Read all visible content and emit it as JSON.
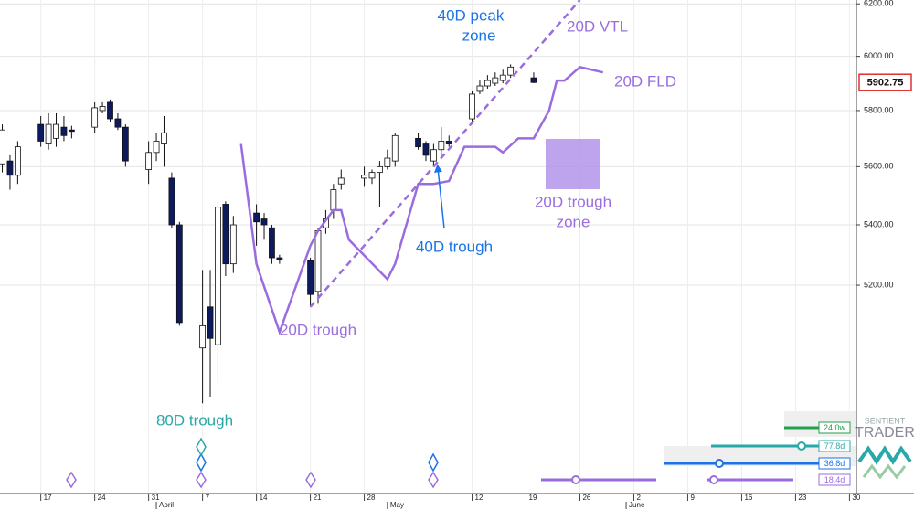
{
  "chart_data": {
    "type": "candlestick",
    "x": [
      -5,
      -4,
      -3,
      0,
      1,
      2,
      3,
      4,
      7,
      8,
      9,
      10,
      11,
      14,
      15,
      16,
      17,
      18,
      21,
      22,
      23,
      24,
      25,
      28,
      29,
      30,
      31,
      35,
      36,
      37,
      38,
      39,
      42,
      43,
      44,
      45,
      46,
      49,
      50,
      51,
      52,
      53,
      56,
      57,
      58,
      59,
      60,
      61,
      64
    ],
    "open": [
      5610,
      5620,
      5570,
      5750,
      5680,
      5700,
      5740,
      5730,
      5740,
      5800,
      5830,
      5770,
      5740,
      5590,
      5650,
      5680,
      5560,
      5400,
      5000,
      5130,
      5010,
      5470,
      5270,
      5440,
      5420,
      5390,
      5290,
      5280,
      5180,
      5390,
      5450,
      5540,
      5560,
      5560,
      5580,
      5600,
      5620,
      5700,
      5680,
      5620,
      5660,
      5690,
      5770,
      5870,
      5890,
      5900,
      5910,
      5930,
      5920
    ],
    "high": [
      5750,
      5640,
      5690,
      5780,
      5790,
      5790,
      5780,
      5745,
      5830,
      5830,
      5840,
      5790,
      5750,
      5690,
      5720,
      5780,
      5580,
      5410,
      5250,
      5250,
      5480,
      5480,
      5430,
      5470,
      5440,
      5400,
      5300,
      5290,
      5390,
      5450,
      5540,
      5590,
      5600,
      5590,
      5620,
      5660,
      5720,
      5720,
      5690,
      5680,
      5740,
      5710,
      5870,
      5910,
      5930,
      5940,
      5950,
      5970,
      5940
    ],
    "low": [
      5580,
      5520,
      5540,
      5670,
      5660,
      5670,
      5690,
      5700,
      5720,
      5790,
      5760,
      5730,
      5600,
      5540,
      5620,
      5600,
      5390,
      5070,
      4830,
      4850,
      4890,
      5230,
      5240,
      5330,
      5350,
      5270,
      5270,
      5130,
      5140,
      5370,
      5420,
      5520,
      5530,
      5540,
      5460,
      5590,
      5600,
      5660,
      5620,
      5600,
      5640,
      5670,
      5760,
      5860,
      5880,
      5890,
      5900,
      5920,
      5900
    ],
    "close": [
      5730,
      5570,
      5670,
      5690,
      5750,
      5750,
      5710,
      5725,
      5810,
      5815,
      5770,
      5740,
      5620,
      5650,
      5690,
      5720,
      5400,
      5080,
      5070,
      5030,
      5460,
      5270,
      5400,
      5410,
      5400,
      5290,
      5285,
      5170,
      5380,
      5420,
      5520,
      5560,
      5570,
      5580,
      5600,
      5630,
      5710,
      5670,
      5640,
      5660,
      5690,
      5680,
      5860,
      5890,
      5910,
      5920,
      5930,
      5960,
      5902.75
    ],
    "up_color": "#ffffff",
    "down_color": "#0d1b5e",
    "last_price": 5902.75,
    "log_scale": true,
    "grid": true,
    "xlim": [
      -5.3,
      105.9
    ],
    "ylim": [
      4565,
      6215
    ],
    "yticks": [
      {
        "value": 5200,
        "label": "5200.00"
      },
      {
        "value": 5400,
        "label": "5400.00"
      },
      {
        "value": 5600,
        "label": "5600.00"
      },
      {
        "value": 5800,
        "label": "5800.00"
      },
      {
        "value": 6000,
        "label": "6000.00"
      },
      {
        "value": 6200,
        "label": "6200.00"
      }
    ],
    "xticks": [
      {
        "value": 0,
        "label": "17"
      },
      {
        "value": 7,
        "label": "24"
      },
      {
        "value": 14,
        "label": "31"
      },
      {
        "value": 21,
        "label": "7"
      },
      {
        "value": 28,
        "label": "14"
      },
      {
        "value": 35,
        "label": "21"
      },
      {
        "value": 42,
        "label": "28"
      },
      {
        "value": 56,
        "label": "12"
      },
      {
        "value": 63,
        "label": "19"
      },
      {
        "value": 70,
        "label": "26"
      },
      {
        "value": 77,
        "label": "2"
      },
      {
        "value": 84,
        "label": "9"
      },
      {
        "value": 91,
        "label": "16"
      },
      {
        "value": 98,
        "label": "23"
      },
      {
        "value": 105,
        "label": "30"
      }
    ],
    "month_ticks": [
      {
        "value": 15,
        "label": "April"
      },
      {
        "value": 45,
        "label": "May"
      },
      {
        "value": 76,
        "label": "June"
      }
    ],
    "lines": [
      {
        "name": "20D FLD",
        "color": "#9a6ddf",
        "dashed": false,
        "x": [
          26,
          28,
          31,
          35,
          36,
          38,
          39,
          40,
          45,
          46,
          49,
          51,
          53,
          55,
          59,
          60,
          62,
          64,
          66,
          67,
          68,
          70,
          73
        ],
        "values": [
          5680,
          5270,
          5050,
          5330,
          5380,
          5450,
          5450,
          5350,
          5220,
          5270,
          5540,
          5540,
          5550,
          5670,
          5670,
          5650,
          5700,
          5700,
          5800,
          5910,
          5910,
          5960,
          5940
        ]
      },
      {
        "name": "20D VTL",
        "color": "#9a6ddf",
        "dashed": true,
        "x": [
          35,
          70
        ],
        "values": [
          5130,
          6215
        ]
      }
    ],
    "annotations": {
      "peak_zone_1": "40D peak",
      "peak_zone_2": "zone",
      "trough_40": "40D trough",
      "trough_20": "20D trough",
      "trough_zone_1": "20D trough",
      "trough_zone_2": "zone",
      "trough_80": "80D trough"
    }
  },
  "cycle_panel": {
    "labels": [
      "24.0w",
      "77.8d",
      "36.8d",
      "18.4d"
    ]
  },
  "logo": {
    "line1": "SENTIENT",
    "line2": "TRADER"
  }
}
